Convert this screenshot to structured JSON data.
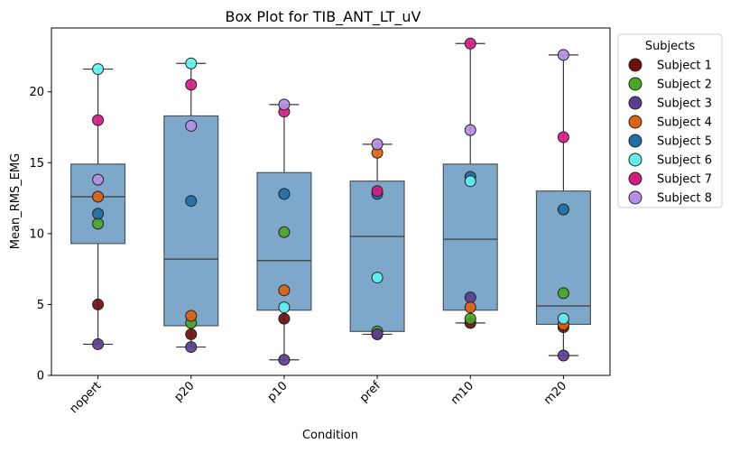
{
  "colors": {
    "box_fill": "#7ea8c9",
    "box_edge": "#4a5560",
    "whisker": "#3a3a3a",
    "median": "#3a3a3a",
    "marker_edge": "#222222"
  },
  "legend_title": "Subjects",
  "chart_data": {
    "type": "box",
    "title": "Box Plot for TIB_ANT_LT_uV",
    "xlabel": "Condition",
    "ylabel": "Mean_RMS_EMG",
    "ylim": [
      0,
      24.5
    ],
    "yticks": [
      0,
      5,
      10,
      15,
      20
    ],
    "categories": [
      "nopert",
      "p20",
      "p10",
      "pref",
      "m10",
      "m20"
    ],
    "legend_position": "outside-right",
    "boxes": [
      {
        "category": "nopert",
        "whisker_low": 2.2,
        "q1": 9.3,
        "median": 12.6,
        "q3": 14.9,
        "whisker_high": 21.6
      },
      {
        "category": "p20",
        "whisker_low": 2.0,
        "q1": 3.5,
        "median": 8.2,
        "q3": 18.3,
        "whisker_high": 22.0
      },
      {
        "category": "p10",
        "whisker_low": 1.1,
        "q1": 4.6,
        "median": 8.1,
        "q3": 14.3,
        "whisker_high": 19.1
      },
      {
        "category": "pref",
        "whisker_low": 2.9,
        "q1": 3.1,
        "median": 9.8,
        "q3": 13.7,
        "whisker_high": 16.3
      },
      {
        "category": "m10",
        "whisker_low": 3.7,
        "q1": 4.6,
        "median": 9.6,
        "q3": 14.9,
        "whisker_high": 23.4
      },
      {
        "category": "m20",
        "whisker_low": 1.4,
        "q1": 3.6,
        "median": 4.9,
        "q3": 13.0,
        "whisker_high": 22.6
      }
    ],
    "series": [
      {
        "name": "Subject 1",
        "color": "#6b0f0f",
        "values": [
          5.0,
          2.9,
          4.0,
          2.9,
          3.7,
          3.4
        ]
      },
      {
        "name": "Subject 2",
        "color": "#4ca52a",
        "values": [
          10.7,
          3.7,
          10.1,
          3.1,
          4.0,
          5.8
        ]
      },
      {
        "name": "Subject 3",
        "color": "#5a3e91",
        "values": [
          2.2,
          2.0,
          1.1,
          2.9,
          5.5,
          1.4
        ]
      },
      {
        "name": "Subject 4",
        "color": "#e0620f",
        "values": [
          12.6,
          4.2,
          6.0,
          15.7,
          4.8,
          3.6
        ]
      },
      {
        "name": "Subject 5",
        "color": "#1f6fa6",
        "values": [
          11.4,
          12.3,
          12.8,
          12.8,
          14.0,
          11.7
        ]
      },
      {
        "name": "Subject 6",
        "color": "#5ff2f2",
        "values": [
          21.6,
          22.0,
          4.8,
          6.9,
          13.7,
          4.0
        ]
      },
      {
        "name": "Subject 7",
        "color": "#d41c87",
        "values": [
          18.0,
          20.5,
          18.6,
          13.0,
          23.4,
          16.8
        ]
      },
      {
        "name": "Subject 8",
        "color": "#b48fe6",
        "values": [
          13.8,
          17.6,
          19.1,
          16.3,
          17.3,
          22.6
        ]
      }
    ]
  }
}
